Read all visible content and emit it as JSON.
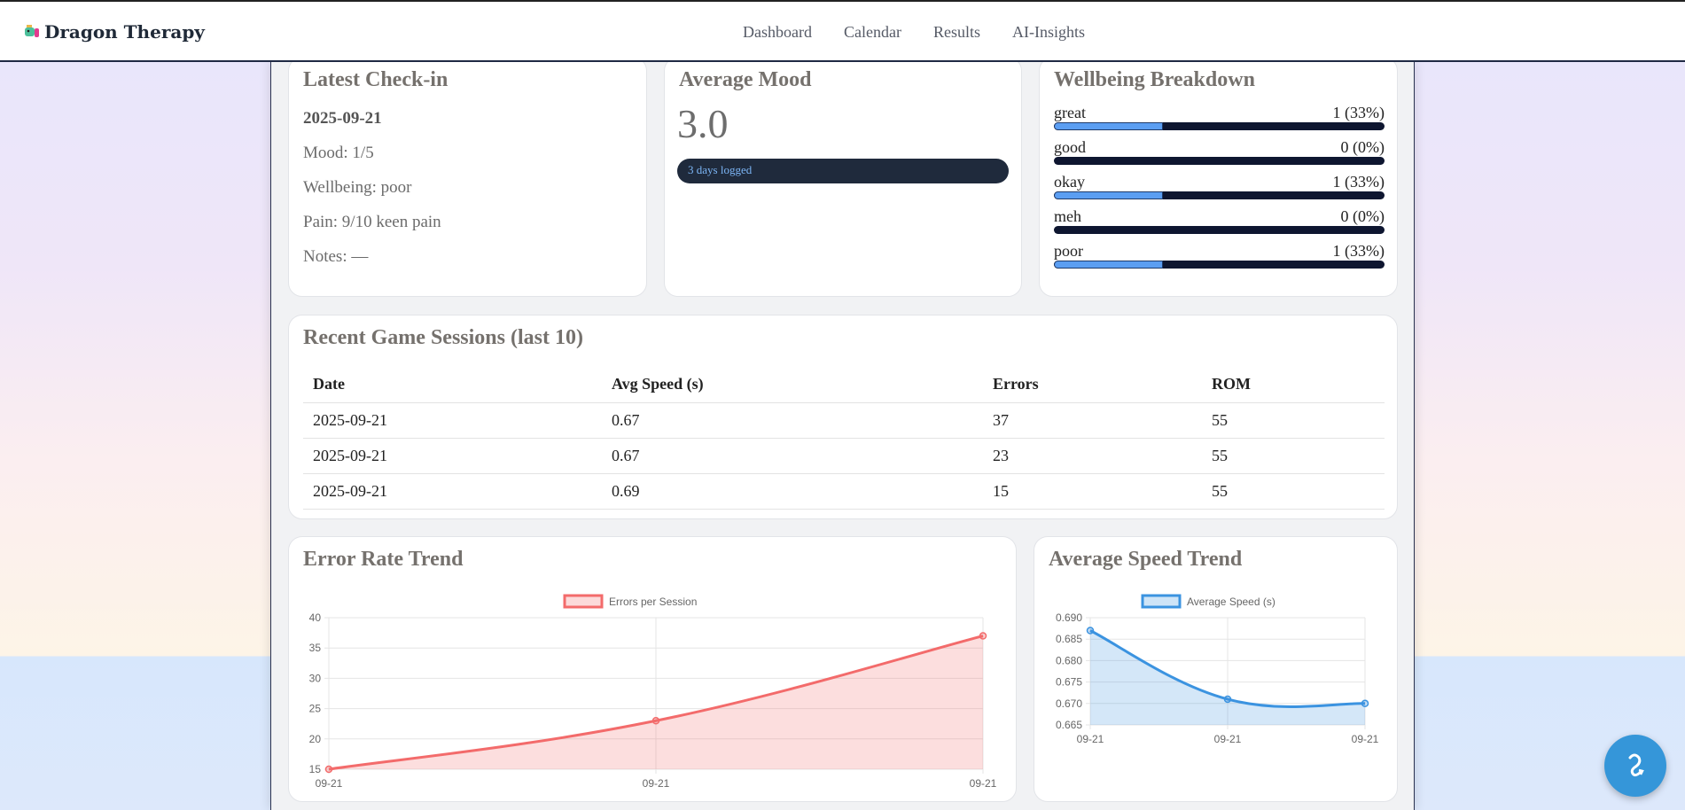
{
  "app": {
    "title": "Dragon Therapy",
    "logo_icon": "dragon-icon"
  },
  "nav": [
    "Dashboard",
    "Calendar",
    "Results",
    "AI-Insights"
  ],
  "checkin": {
    "title": "Latest Check-in",
    "date": "2025-09-21",
    "mood": "Mood: 1/5",
    "wellbeing": "Wellbeing: poor",
    "pain": "Pain: 9/10 keen pain",
    "notes": "Notes: —"
  },
  "mood": {
    "title": "Average Mood",
    "value": "3.0",
    "days": "3 days logged"
  },
  "wellbeing": {
    "title": "Wellbeing Breakdown",
    "items": [
      {
        "label": "great",
        "count": "1 (33%)",
        "percent": 33
      },
      {
        "label": "good",
        "count": "0 (0%)",
        "percent": 0
      },
      {
        "label": "okay",
        "count": "1 (33%)",
        "percent": 33
      },
      {
        "label": "meh",
        "count": "0 (0%)",
        "percent": 0
      },
      {
        "label": "poor",
        "count": "1 (33%)",
        "percent": 33
      }
    ]
  },
  "sessions": {
    "title": "Recent Game Sessions (last 10)",
    "headers": [
      "Date",
      "Avg Speed (s)",
      "Errors",
      "ROM"
    ],
    "rows": [
      [
        "2025-09-21",
        "0.67",
        "37",
        "55"
      ],
      [
        "2025-09-21",
        "0.67",
        "23",
        "55"
      ],
      [
        "2025-09-21",
        "0.69",
        "15",
        "55"
      ]
    ]
  },
  "chart_data": [
    {
      "type": "area",
      "title": "Error Rate Trend",
      "categories": [
        "09-21",
        "09-21",
        "09-21"
      ],
      "series": [
        {
          "name": "Errors per Session",
          "values": [
            15,
            23,
            37
          ]
        }
      ],
      "ylim": [
        15,
        40
      ],
      "yticks": [
        40,
        35,
        30,
        25,
        20,
        15
      ],
      "grid": true,
      "legend": "top",
      "color": "#f36b6b"
    },
    {
      "type": "area",
      "title": "Average Speed Trend",
      "categories": [
        "09-21",
        "09-21",
        "09-21"
      ],
      "series": [
        {
          "name": "Average Speed (s)",
          "values": [
            0.687,
            0.671,
            0.67
          ]
        }
      ],
      "ylim": [
        0.665,
        0.69
      ],
      "yticks": [
        "0.690",
        "0.685",
        "0.680",
        "0.675",
        "0.670",
        "0.665"
      ],
      "grid": true,
      "legend": "top",
      "color": "#3b93e0"
    }
  ],
  "fab": {
    "icon": "dragon-chat-icon"
  }
}
